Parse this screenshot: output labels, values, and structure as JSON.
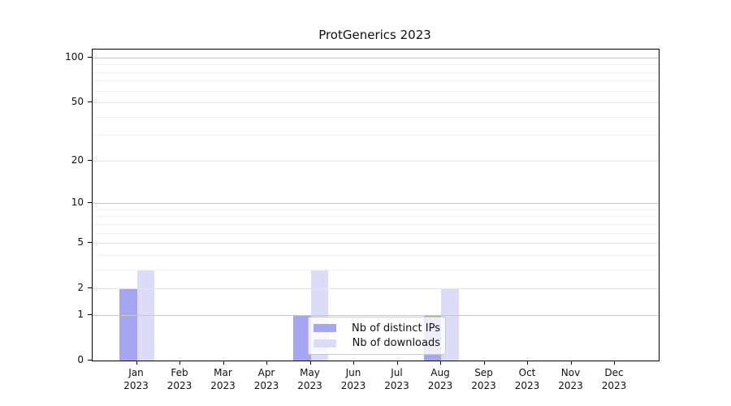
{
  "colors": {
    "distinct_ips": "#a5a5f1",
    "downloads": "#dcdcf9",
    "grid_major": "#c6c6c6",
    "grid_mid": "#e5e5e5",
    "grid_minor": "#f1f1f1",
    "axis": "#000000",
    "text": "#111111",
    "legend_border": "#c9c9c9"
  },
  "chart_data": {
    "type": "bar",
    "title": "ProtGenerics 2023",
    "categories": [
      "Jan 2023",
      "Feb 2023",
      "Mar 2023",
      "Apr 2023",
      "May 2023",
      "Jun 2023",
      "Jul 2023",
      "Aug 2023",
      "Sep 2023",
      "Oct 2023",
      "Nov 2023",
      "Dec 2023"
    ],
    "series": [
      {
        "name": "Nb of distinct IPs",
        "color": "#a5a5f1",
        "values": [
          2,
          0,
          0,
          0,
          1,
          0,
          0,
          1,
          0,
          0,
          0,
          0
        ]
      },
      {
        "name": "Nb of downloads",
        "color": "#dcdcf9",
        "values": [
          3,
          0,
          0,
          0,
          3,
          0,
          0,
          2,
          0,
          0,
          0,
          0
        ]
      }
    ],
    "xlabel": "",
    "ylabel": "",
    "yscale": "log1p",
    "ylim": [
      0,
      113
    ],
    "y_major_ticks": [
      0,
      1,
      2,
      5,
      10,
      20,
      50,
      100
    ],
    "y_emphasized_ticks": [
      1,
      10,
      100
    ],
    "y_minor_ticks": [
      3,
      4,
      6,
      7,
      8,
      9,
      30,
      40,
      60,
      70,
      80,
      90
    ],
    "grid": "horizontal-major-and-minor",
    "legend_position": "lower-center-inside"
  }
}
